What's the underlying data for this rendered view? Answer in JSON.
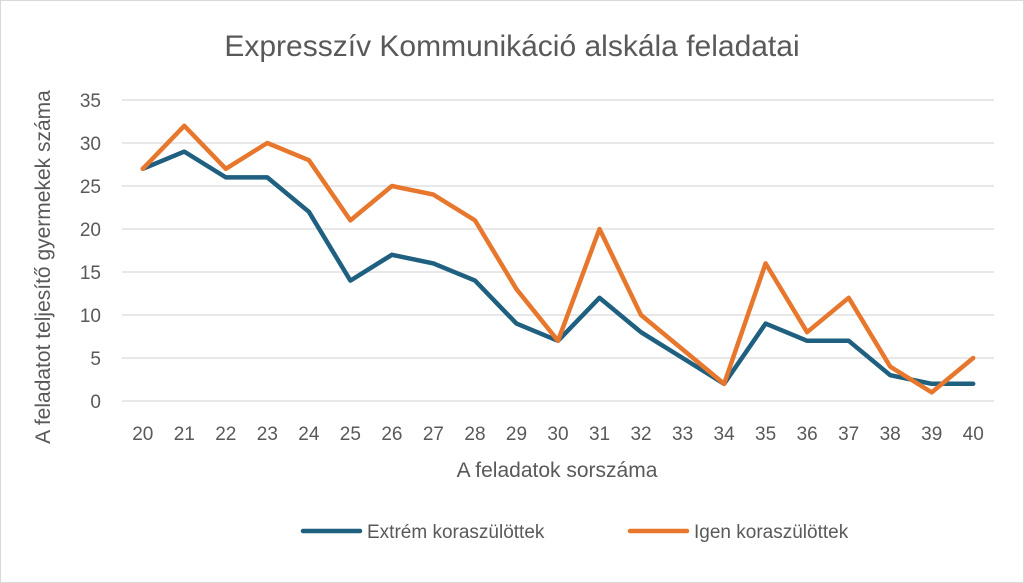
{
  "chart_data": {
    "type": "line",
    "title": "Expresszív Kommunikáció alskála feladatai",
    "xlabel": "A feladatok sorszáma",
    "ylabel": "A feladatot teljesítő gyermekek száma",
    "ylim": [
      0,
      35
    ],
    "yticks": [
      0,
      5,
      10,
      15,
      20,
      25,
      30,
      35
    ],
    "grid": true,
    "legend_position": "bottom",
    "categories": [
      "20",
      "21",
      "22",
      "23",
      "24",
      "25",
      "26",
      "27",
      "28",
      "29",
      "30",
      "31",
      "32",
      "33",
      "34",
      "35",
      "36",
      "37",
      "38",
      "39",
      "40"
    ],
    "series": [
      {
        "name": "Extrém koraszülöttek",
        "color": "#1f5f7f",
        "values": [
          27,
          29,
          26,
          26,
          22,
          14,
          17,
          16,
          14,
          9,
          7,
          12,
          8,
          5,
          2,
          9,
          7,
          7,
          3,
          2,
          2
        ]
      },
      {
        "name": "Igen koraszülöttek",
        "color": "#e8772e",
        "values": [
          27,
          32,
          27,
          30,
          28,
          21,
          25,
          24,
          21,
          13,
          7,
          20,
          10,
          6,
          2,
          16,
          8,
          12,
          4,
          1,
          5
        ]
      }
    ]
  }
}
